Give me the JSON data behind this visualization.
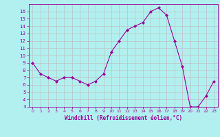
{
  "x": [
    0,
    1,
    2,
    3,
    4,
    5,
    6,
    7,
    8,
    9,
    10,
    11,
    12,
    13,
    14,
    15,
    16,
    17,
    18,
    19,
    20,
    21,
    22,
    23
  ],
  "y": [
    9,
    7.5,
    7,
    6.5,
    7,
    7,
    6.5,
    6,
    6.5,
    7.5,
    10.5,
    12,
    13.5,
    14,
    14.5,
    16,
    16.5,
    15.5,
    12,
    8.5,
    3,
    3,
    4.5,
    6.5
  ],
  "line_color": "#990099",
  "marker": "D",
  "marker_size": 2,
  "bg_color": "#b2f0f0",
  "grid_color": "#c0c0c0",
  "xlabel": "Windchill (Refroidissement éolien,°C)",
  "xlabel_color": "#990099",
  "tick_color": "#990099",
  "ylim": [
    3,
    17
  ],
  "xlim": [
    -0.5,
    23.5
  ],
  "yticks": [
    3,
    4,
    5,
    6,
    7,
    8,
    9,
    10,
    11,
    12,
    13,
    14,
    15,
    16
  ],
  "xticks": [
    0,
    1,
    2,
    3,
    4,
    5,
    6,
    7,
    8,
    9,
    10,
    11,
    12,
    13,
    14,
    15,
    16,
    17,
    18,
    19,
    20,
    21,
    22,
    23
  ]
}
